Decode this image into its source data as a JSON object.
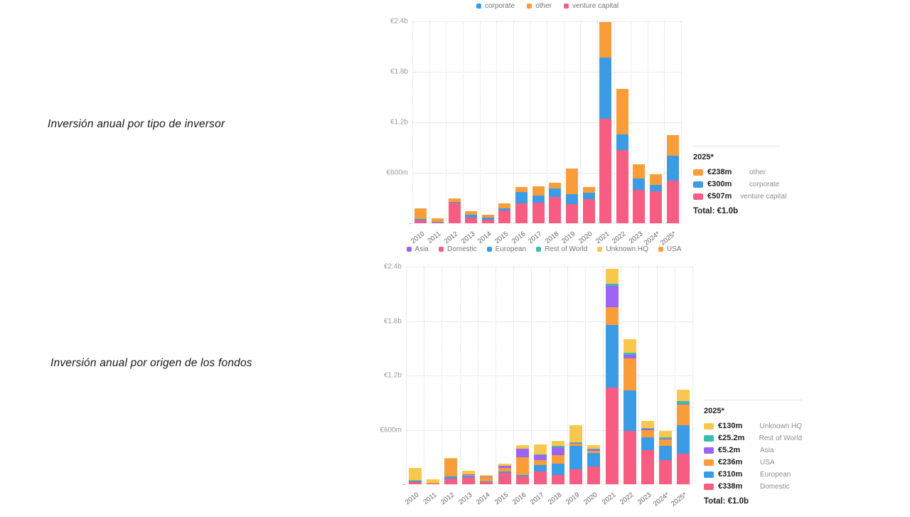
{
  "titles": {
    "chart1": "Inversión anual por tipo de inversor",
    "chart2": "Inversión anual por origen de los fondos"
  },
  "colors": {
    "pink": "#F75C82",
    "blue": "#3B9BE5",
    "orange": "#F99D3B",
    "purple": "#9C64F4",
    "teal": "#3CBCAE",
    "yellow": "#F8C84E"
  },
  "chart_data": [
    {
      "type": "bar",
      "stacked": true,
      "title": "Inversión anual por tipo de inversor",
      "categories": [
        "2010",
        "2011",
        "2012",
        "2013",
        "2014",
        "2015",
        "2016",
        "2017",
        "2018",
        "2019",
        "2020",
        "2021",
        "2022",
        "2023",
        "2024*",
        "2025*"
      ],
      "series": [
        {
          "name": "venture capital",
          "color": "pink",
          "values": [
            30,
            15,
            245,
            70,
            45,
            155,
            240,
            245,
            310,
            230,
            285,
            1240,
            870,
            400,
            380,
            507
          ]
        },
        {
          "name": "corporate",
          "color": "blue",
          "values": [
            25,
            5,
            10,
            35,
            20,
            20,
            130,
            85,
            105,
            120,
            75,
            730,
            185,
            130,
            75,
            300
          ]
        },
        {
          "name": "other",
          "color": "orange",
          "values": [
            125,
            38,
            40,
            40,
            40,
            60,
            65,
            110,
            65,
            300,
            70,
            420,
            545,
            170,
            130,
            238
          ]
        }
      ],
      "legend": [
        {
          "label": "corporate",
          "color": "blue"
        },
        {
          "label": "other",
          "color": "orange"
        },
        {
          "label": "venture capital",
          "color": "pink"
        }
      ],
      "legend_position": "top-center",
      "grid": true,
      "ylim": [
        0,
        2400
      ],
      "yticks": [
        {
          "value": 600,
          "label": "€600m"
        },
        {
          "value": 1200,
          "label": "€1.2b"
        },
        {
          "value": 1800,
          "label": "€1.8b"
        },
        {
          "value": 2400,
          "label": "€2.4b"
        }
      ],
      "units": "EUR millions",
      "panel": {
        "title": "2025*",
        "rows": [
          {
            "value": "€238m",
            "label": "other",
            "color": "orange"
          },
          {
            "value": "€300m",
            "label": "corporate",
            "color": "blue"
          },
          {
            "value": "€507m",
            "label": "venture capital",
            "color": "pink"
          }
        ],
        "total": "Total: €1.0b"
      }
    },
    {
      "type": "bar",
      "stacked": true,
      "title": "Inversión anual por origen de los fondos",
      "categories": [
        "2010",
        "2011",
        "2012",
        "2013",
        "2014",
        "2015",
        "2016",
        "2017",
        "2018",
        "2019",
        "2020",
        "2021",
        "2022",
        "2023",
        "2024*",
        "2025*"
      ],
      "series": [
        {
          "name": "Domestic",
          "color": "pink",
          "values": [
            20,
            10,
            60,
            80,
            30,
            125,
            85,
            143,
            100,
            165,
            200,
            1065,
            590,
            380,
            270,
            338
          ]
        },
        {
          "name": "European",
          "color": "blue",
          "values": [
            25,
            0,
            30,
            15,
            5,
            18,
            20,
            68,
            130,
            255,
            145,
            690,
            447,
            140,
            150,
            310
          ]
        },
        {
          "name": "USA",
          "color": "orange",
          "values": [
            5,
            3,
            190,
            5,
            45,
            40,
            190,
            57,
            90,
            30,
            26,
            200,
            350,
            80,
            80,
            236
          ]
        },
        {
          "name": "Asia",
          "color": "purple",
          "values": [
            0,
            0,
            0,
            10,
            10,
            18,
            100,
            60,
            90,
            10,
            20,
            230,
            40,
            10,
            5,
            5.2
          ]
        },
        {
          "name": "Rest of World",
          "color": "teal",
          "values": [
            0,
            0,
            0,
            0,
            0,
            0,
            0,
            5,
            13,
            5,
            5,
            30,
            28,
            10,
            15,
            25.2
          ]
        },
        {
          "name": "Unknown HQ",
          "color": "yellow",
          "values": [
            130,
            45,
            10,
            40,
            15,
            29,
            40,
            107,
            57,
            185,
            34,
            165,
            145,
            80,
            65,
            130
          ]
        }
      ],
      "legend": [
        {
          "label": "Asia",
          "color": "purple"
        },
        {
          "label": "Domestic",
          "color": "pink"
        },
        {
          "label": "European",
          "color": "blue"
        },
        {
          "label": "Rest of World",
          "color": "teal"
        },
        {
          "label": "Unknown HQ",
          "color": "yellow"
        },
        {
          "label": "USA",
          "color": "orange"
        }
      ],
      "legend_position": "top-center",
      "grid": true,
      "ylim": [
        0,
        2400
      ],
      "yticks": [
        {
          "value": 600,
          "label": "€600m"
        },
        {
          "value": 1200,
          "label": "€1.2b"
        },
        {
          "value": 1800,
          "label": "€1.8b"
        },
        {
          "value": 2400,
          "label": "€2.4b"
        }
      ],
      "units": "EUR millions",
      "panel": {
        "title": "2025*",
        "rows": [
          {
            "value": "€130m",
            "label": "Unknown HQ",
            "color": "yellow"
          },
          {
            "value": "€25.2m",
            "label": "Rest of World",
            "color": "teal"
          },
          {
            "value": "€5.2m",
            "label": "Asia",
            "color": "purple"
          },
          {
            "value": "€236m",
            "label": "USA",
            "color": "orange"
          },
          {
            "value": "€310m",
            "label": "European",
            "color": "blue"
          },
          {
            "value": "€338m",
            "label": "Domestic",
            "color": "pink"
          }
        ],
        "total": "Total: €1.0b"
      }
    }
  ]
}
